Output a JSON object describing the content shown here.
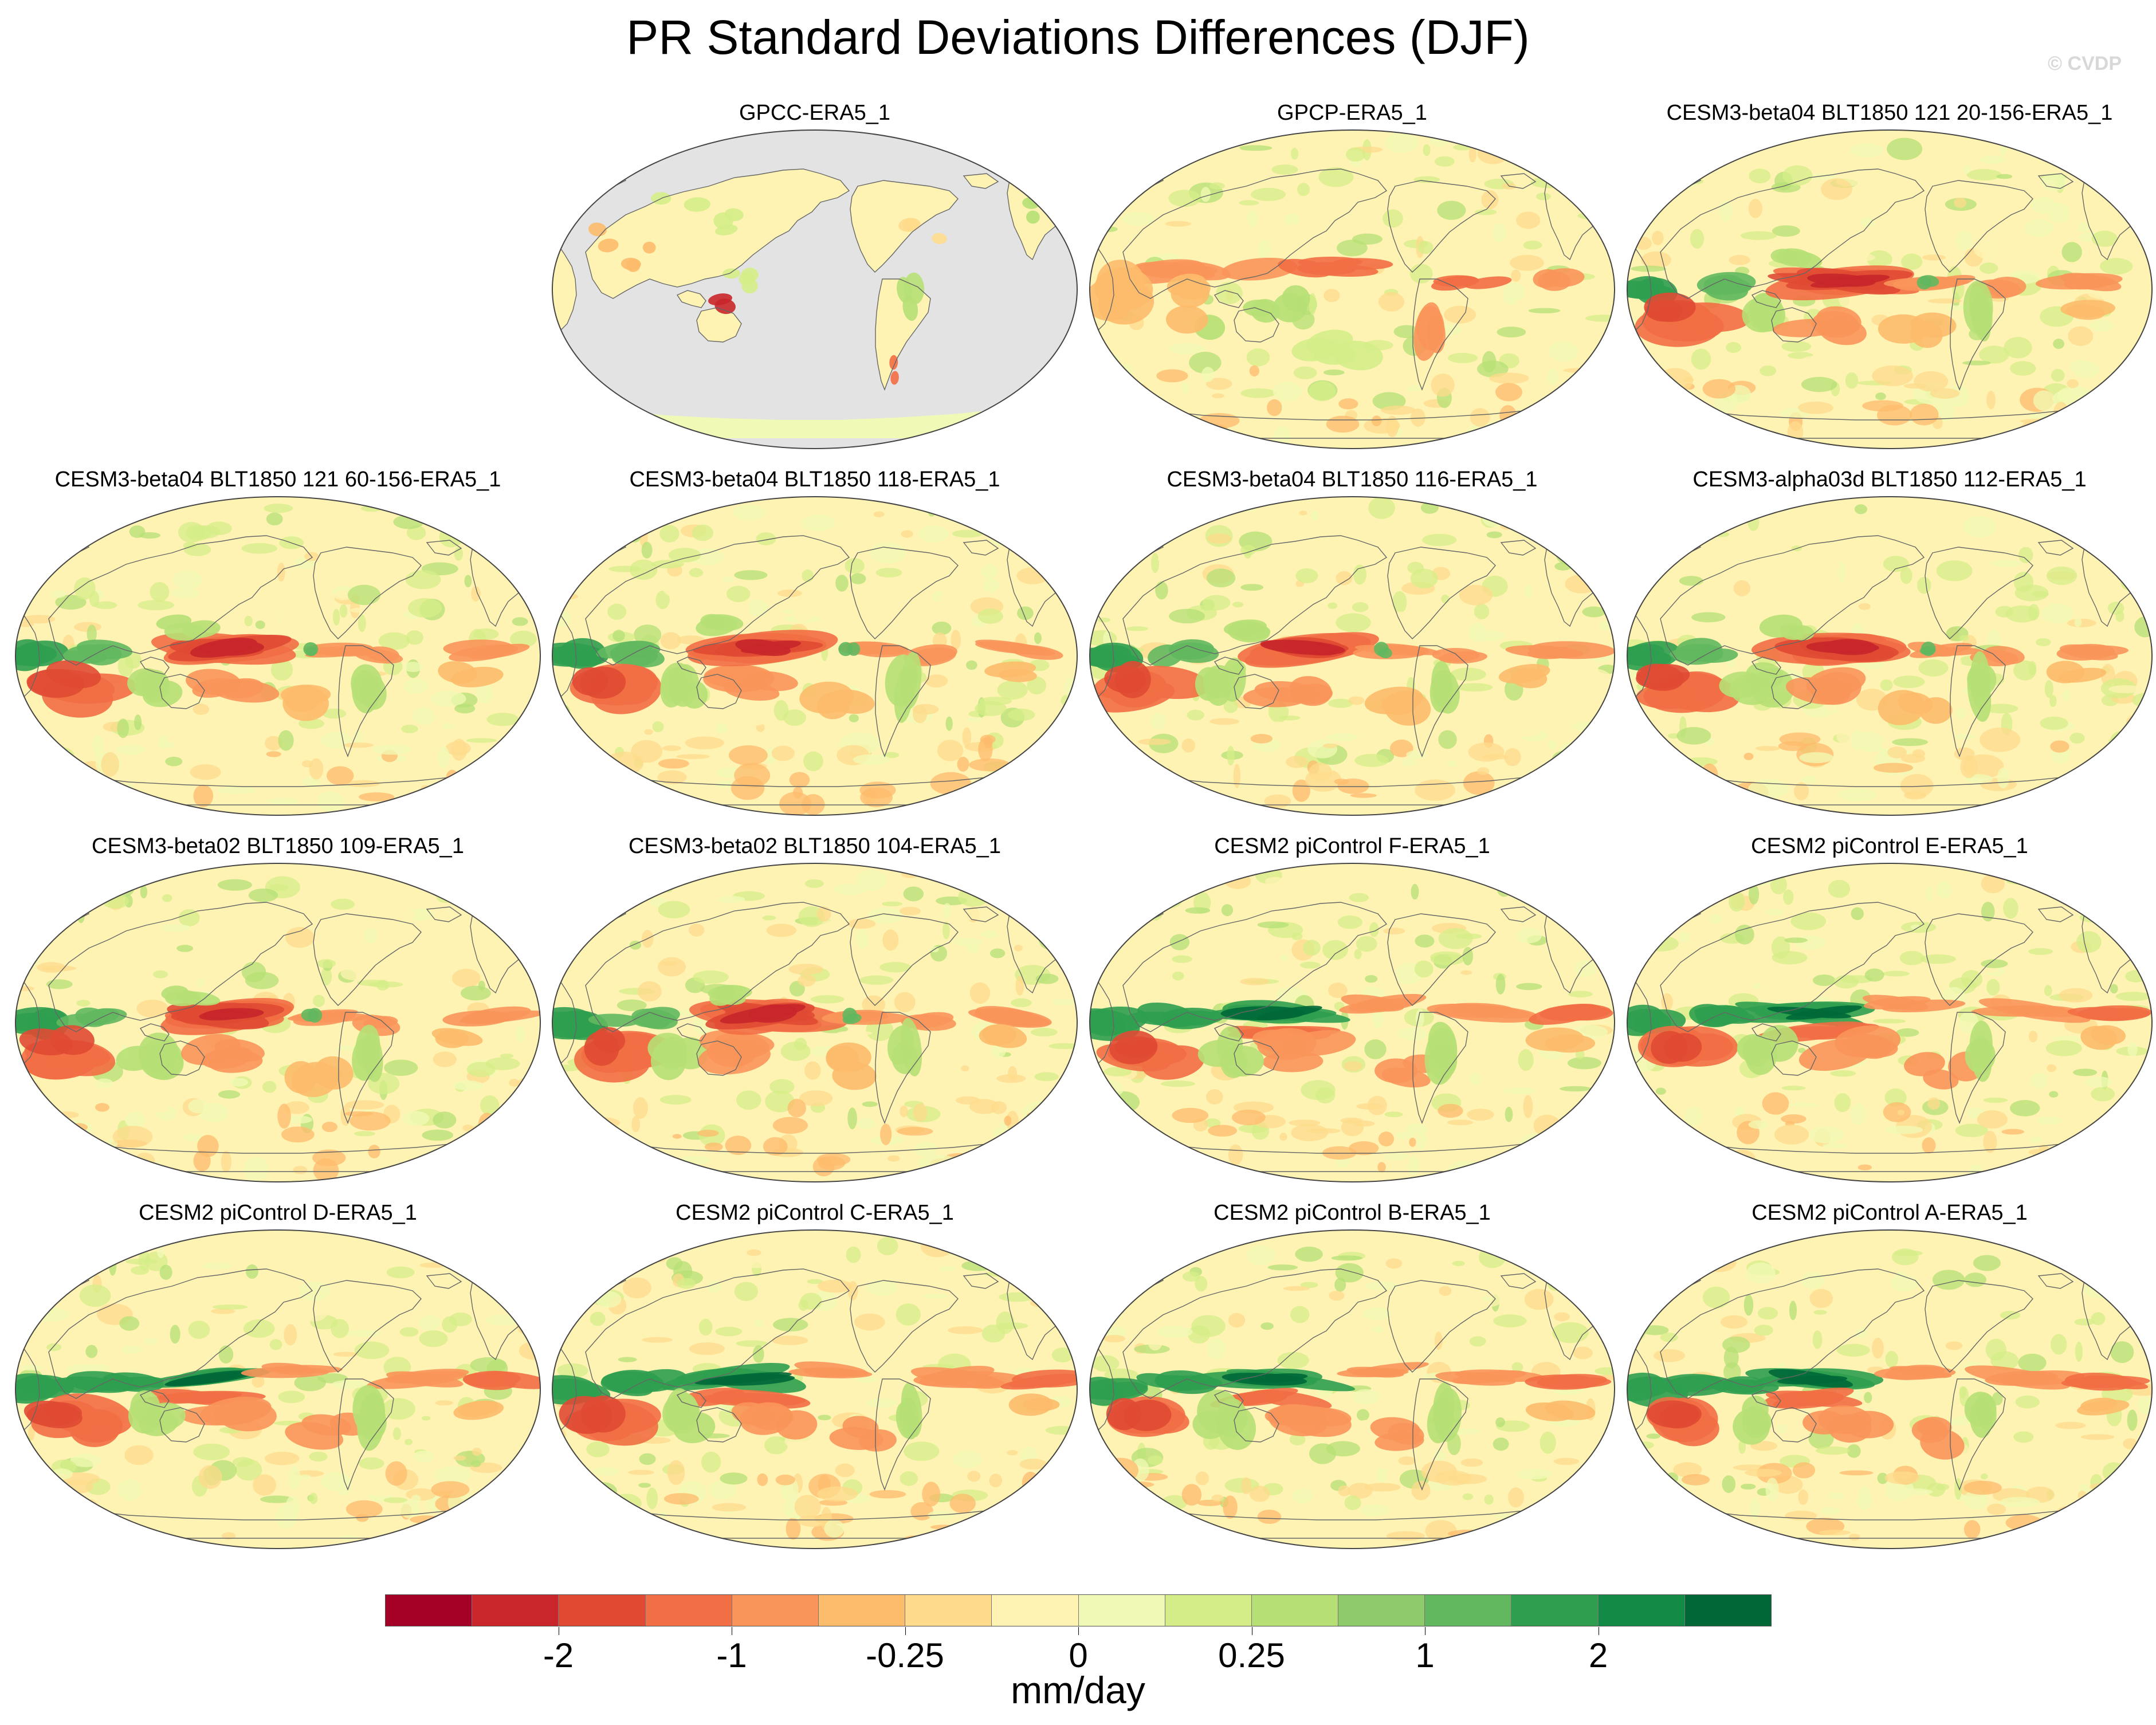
{
  "title": "PR Standard Deviations Differences (DJF)",
  "watermark": "© CVDP",
  "units": "mm/day",
  "colorbar": {
    "colors": [
      "#a50026",
      "#c8262a",
      "#e04a33",
      "#f26e44",
      "#f9955a",
      "#fdbb6c",
      "#fedb8c",
      "#fff3b3",
      "#f1f9b6",
      "#d5ed88",
      "#b6e076",
      "#8ecb6a",
      "#62b85f",
      "#2f9e4f",
      "#138a45",
      "#006837"
    ],
    "tick_labels": [
      "-2",
      "-1",
      "-0.25",
      "0",
      "0.25",
      "1",
      "2"
    ],
    "tick_boundaries": [
      2,
      4,
      6,
      8,
      10,
      12,
      14
    ]
  },
  "panels": [
    {
      "title": "GPCC-ERA5_1",
      "pattern": "gpcc"
    },
    {
      "title": "GPCP-ERA5_1",
      "pattern": "gpcp"
    },
    {
      "title": "CESM3-beta04 BLT1850 121 20-156-ERA5_1",
      "pattern": "cesm3"
    },
    {
      "title": "CESM3-beta04 BLT1850 121 60-156-ERA5_1",
      "pattern": "cesm3"
    },
    {
      "title": "CESM3-beta04 BLT1850 118-ERA5_1",
      "pattern": "cesm3"
    },
    {
      "title": "CESM3-beta04 BLT1850 116-ERA5_1",
      "pattern": "cesm3"
    },
    {
      "title": "CESM3-alpha03d BLT1850 112-ERA5_1",
      "pattern": "cesm3"
    },
    {
      "title": "CESM3-beta02 BLT1850 109-ERA5_1",
      "pattern": "cesm3"
    },
    {
      "title": "CESM3-beta02 BLT1850 104-ERA5_1",
      "pattern": "cesm3"
    },
    {
      "title": "CESM2 piControl F-ERA5_1",
      "pattern": "cesm2"
    },
    {
      "title": "CESM2 piControl E-ERA5_1",
      "pattern": "cesm2"
    },
    {
      "title": "CESM2 piControl D-ERA5_1",
      "pattern": "cesm2"
    },
    {
      "title": "CESM2 piControl C-ERA5_1",
      "pattern": "cesm2"
    },
    {
      "title": "CESM2 piControl B-ERA5_1",
      "pattern": "cesm2"
    },
    {
      "title": "CESM2 piControl A-ERA5_1",
      "pattern": "cesm2"
    }
  ]
}
